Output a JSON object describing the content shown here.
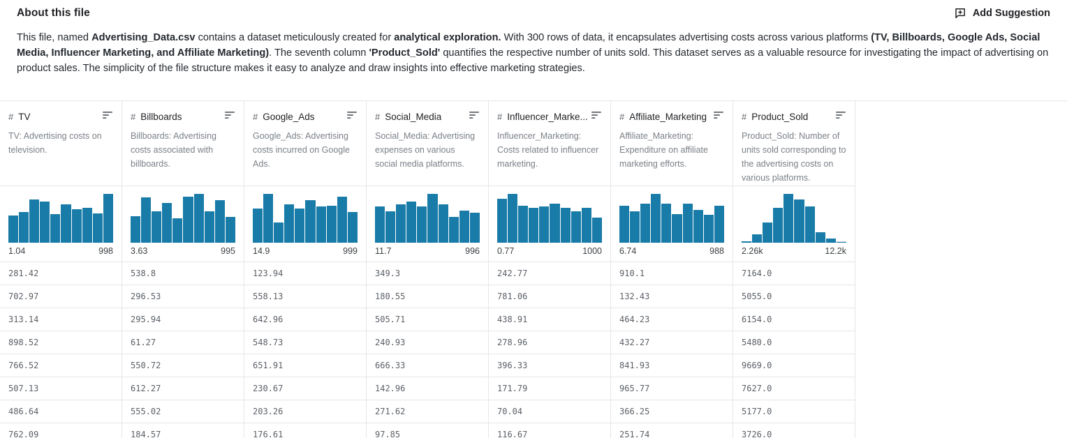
{
  "header": {
    "title": "About this file",
    "add_suggestion_label": "Add Suggestion"
  },
  "description": {
    "segments": [
      {
        "text": "This file, named ",
        "bold": false
      },
      {
        "text": "Advertising_Data.csv",
        "bold": true
      },
      {
        "text": " contains a dataset meticulously created for ",
        "bold": false
      },
      {
        "text": "analytical exploration.",
        "bold": true
      },
      {
        "text": " With 300 rows of data, it encapsulates advertising costs across various platforms ",
        "bold": false
      },
      {
        "text": "(TV, Billboards, Google Ads, Social Media, Influencer Marketing, and Affiliate Marketing)",
        "bold": true
      },
      {
        "text": ". The seventh column ",
        "bold": false
      },
      {
        "text": "'Product_Sold'",
        "bold": true
      },
      {
        "text": " quantifies the respective number of units sold. This dataset serves as a valuable resource for investigating the impact of advertising on product sales. The simplicity of the file structure makes it easy to analyze and draw insights into effective marketing strategies.",
        "bold": false
      }
    ]
  },
  "table": {
    "numeric_type_icon": "#",
    "columns": [
      {
        "name": "TV",
        "description": "TV: Advertising costs on television.",
        "histogram": {
          "min_label": "1.04",
          "max_label": "998",
          "baseline": false,
          "bars": [
            0.56,
            0.63,
            0.88,
            0.84,
            0.59,
            0.78,
            0.68,
            0.71,
            0.6,
            1.0
          ]
        }
      },
      {
        "name": "Billboards",
        "description": "Billboards: Advertising costs associated with billboards.",
        "histogram": {
          "min_label": "3.63",
          "max_label": "995",
          "baseline": false,
          "bars": [
            0.55,
            0.93,
            0.64,
            0.82,
            0.5,
            0.95,
            1.0,
            0.65,
            0.87,
            0.53
          ]
        }
      },
      {
        "name": "Google_Ads",
        "description": "Google_Ads: Advertising costs incurred on Google Ads.",
        "histogram": {
          "min_label": "14.9",
          "max_label": "999",
          "baseline": false,
          "bars": [
            0.7,
            1.0,
            0.42,
            0.78,
            0.7,
            0.87,
            0.75,
            0.76,
            0.94,
            0.63
          ]
        }
      },
      {
        "name": "Social_Media",
        "description": "Social_Media: Advertising expenses on various social media platforms.",
        "histogram": {
          "min_label": "11.7",
          "max_label": "996",
          "baseline": false,
          "bars": [
            0.75,
            0.64,
            0.78,
            0.84,
            0.74,
            1.0,
            0.78,
            0.53,
            0.66,
            0.61
          ]
        }
      },
      {
        "name": "Influencer_Marke...",
        "description": "Influencer_Marketing: Costs related to influencer marketing.",
        "histogram": {
          "min_label": "0.77",
          "max_label": "1000",
          "baseline": false,
          "bars": [
            0.9,
            1.0,
            0.76,
            0.72,
            0.74,
            0.8,
            0.72,
            0.64,
            0.72,
            0.51
          ]
        }
      },
      {
        "name": "Affiliate_Marketing",
        "description": "Affiliate_Marketing: Expenditure on affiliate marketing efforts.",
        "histogram": {
          "min_label": "6.74",
          "max_label": "988",
          "baseline": false,
          "bars": [
            0.76,
            0.65,
            0.8,
            1.0,
            0.8,
            0.58,
            0.8,
            0.67,
            0.57,
            0.76
          ]
        }
      },
      {
        "name": "Product_Sold",
        "description": "Product_Sold: Number of units sold corresponding to the advertising costs on various platforms.",
        "histogram": {
          "min_label": "2.26k",
          "max_label": "12.2k",
          "baseline": true,
          "bars": [
            0.03,
            0.17,
            0.42,
            0.72,
            1.0,
            0.88,
            0.75,
            0.21,
            0.09,
            0.02
          ]
        }
      }
    ],
    "rows": [
      [
        "281.42",
        "538.8",
        "123.94",
        "349.3",
        "242.77",
        "910.1",
        "7164.0"
      ],
      [
        "702.97",
        "296.53",
        "558.13",
        "180.55",
        "781.06",
        "132.43",
        "5055.0"
      ],
      [
        "313.14",
        "295.94",
        "642.96",
        "505.71",
        "438.91",
        "464.23",
        "6154.0"
      ],
      [
        "898.52",
        "61.27",
        "548.73",
        "240.93",
        "278.96",
        "432.27",
        "5480.0"
      ],
      [
        "766.52",
        "550.72",
        "651.91",
        "666.33",
        "396.33",
        "841.93",
        "9669.0"
      ],
      [
        "507.13",
        "612.27",
        "230.67",
        "142.96",
        "171.79",
        "965.77",
        "7627.0"
      ],
      [
        "486.64",
        "555.02",
        "203.26",
        "271.62",
        "70.04",
        "366.25",
        "5177.0"
      ],
      [
        "762.09",
        "184.57",
        "176.61",
        "97.85",
        "116.67",
        "251.74",
        "3726.0"
      ]
    ]
  },
  "colors": {
    "histogram_bar": "#197ba8",
    "border": "#e4e6e8",
    "text_primary": "#202124",
    "column_description_text": "#7b8087",
    "cell_text": "#5b6067"
  }
}
